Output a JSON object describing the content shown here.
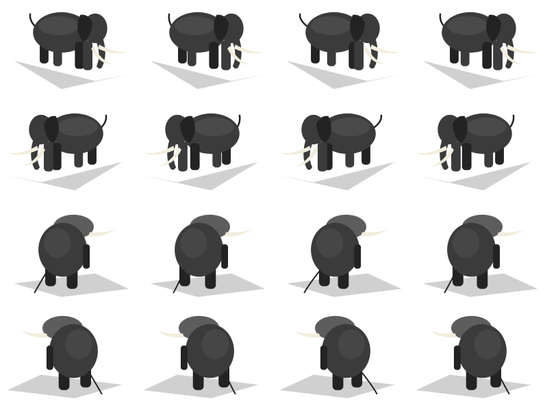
{
  "sprite_sheet": {
    "subject": "elephant",
    "layout": {
      "rows": 4,
      "columns": 4
    },
    "rows": [
      {
        "direction": "facing-right",
        "frames": 4
      },
      {
        "direction": "facing-left-toward-viewer",
        "frames": 4
      },
      {
        "direction": "facing-right-away-from-viewer",
        "frames": 4
      },
      {
        "direction": "facing-left-away-from-viewer",
        "frames": 4
      }
    ],
    "colors": {
      "background": "#ffffff",
      "body": "#3b3b3b",
      "body_highlight": "#5d5d5d",
      "body_dark": "#232323",
      "tusk": "#f2eddc",
      "shadow": "#c8c8c8"
    }
  }
}
